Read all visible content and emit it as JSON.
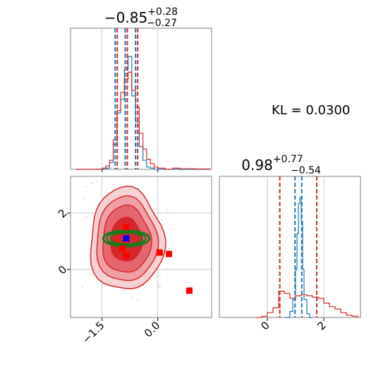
{
  "kl_text": "KL = 0.0300",
  "colors": {
    "blue": "#1f77b4",
    "red": "#d62728",
    "green": "#1a7a1a",
    "marker_red": "#ff0000",
    "marker_blue": "#0000ff",
    "grid": "#c8c8c8",
    "frame": "#808080"
  },
  "chart_data": [
    {
      "type": "line",
      "panel": "marginal-x",
      "title": "$-0.85^{+0.28}_{-0.27}$",
      "title_parts": {
        "main": "−0.85",
        "sup": "+0.28",
        "sub": "−0.27"
      },
      "xlim": [
        -2.35,
        1.45
      ],
      "grid_x": [
        -1.5,
        0.0
      ],
      "quantile_lines": [
        -1.12,
        -0.85,
        -0.57
      ],
      "series": [
        {
          "color": "blue",
          "x": [
            -2.2,
            -2.1,
            -2.0,
            -1.9,
            -1.8,
            -1.7,
            -1.6,
            -1.5,
            -1.4,
            -1.3,
            -1.2,
            -1.1,
            -1.0,
            -0.9,
            -0.8,
            -0.7,
            -0.6,
            -0.5,
            -0.4,
            -0.3,
            -0.2,
            -0.1,
            0.0,
            0.1,
            0.2,
            0.3,
            0.4,
            0.6,
            1.0,
            1.4
          ],
          "y": [
            0,
            0,
            0,
            0,
            0,
            0,
            0,
            0,
            0.01,
            0.06,
            0.22,
            0.5,
            0.62,
            0.88,
            1.0,
            0.65,
            0.42,
            0.2,
            0.08,
            0.02,
            0.01,
            0,
            0,
            0,
            0,
            0,
            0,
            0,
            0,
            0
          ]
        },
        {
          "color": "red",
          "x": [
            -2.2,
            -2.1,
            -2.0,
            -1.9,
            -1.8,
            -1.7,
            -1.6,
            -1.5,
            -1.4,
            -1.3,
            -1.2,
            -1.1,
            -1.0,
            -0.9,
            -0.8,
            -0.7,
            -0.6,
            -0.5,
            -0.4,
            -0.3,
            -0.2,
            -0.1,
            0.0,
            0.1,
            0.2,
            0.3,
            0.4,
            0.6,
            1.0,
            1.4
          ],
          "y": [
            0,
            0,
            0,
            0,
            0,
            0,
            0,
            0.01,
            0.03,
            0.08,
            0.26,
            0.52,
            0.68,
            0.8,
            0.86,
            0.7,
            0.55,
            0.32,
            0.18,
            0.09,
            0.05,
            0.02,
            0.01,
            0.01,
            0,
            0,
            0.01,
            0.005,
            0.003,
            0
          ]
        }
      ]
    },
    {
      "type": "scatter",
      "panel": "joint",
      "xlim": [
        -2.35,
        1.45
      ],
      "ylim": [
        -1.7,
        3.3
      ],
      "grid_x": [
        -1.5,
        0.0
      ],
      "grid_y": [
        0,
        2
      ],
      "xticks": [
        "−1.5",
        "0.0"
      ],
      "yticks": [
        "0",
        "2"
      ],
      "xtick_values": [
        -1.5,
        0.0
      ],
      "ytick_values": [
        0,
        2
      ],
      "points_red": [
        [
          -0.85,
          1.5
        ],
        [
          -0.95,
          0.75
        ],
        [
          -0.85,
          0.5
        ],
        [
          0.05,
          0.6
        ],
        [
          0.3,
          0.55
        ],
        [
          0.85,
          -0.75
        ]
      ],
      "point_blue": [
        -0.85,
        1.1
      ],
      "ellipse_green": {
        "cx": -0.85,
        "cy": 1.1,
        "rx": 0.62,
        "ry": 0.28
      }
    },
    {
      "type": "line",
      "panel": "marginal-y",
      "title": "$0.98^{+0.77}_{-0.54}$",
      "title_parts": {
        "main": "0.98",
        "sup": "+0.77",
        "sub": "−0.54"
      },
      "xlim": [
        -1.7,
        3.3
      ],
      "grid_x": [
        0,
        2
      ],
      "xticks": [
        "0",
        "2"
      ],
      "xtick_values": [
        0,
        2
      ],
      "quantile_lines_red": [
        0.44,
        1.75
      ],
      "quantile_lines_blue": [
        0.98,
        1.22
      ],
      "series": [
        {
          "color": "blue",
          "x": [
            0.6,
            0.7,
            0.8,
            0.9,
            1.0,
            1.05,
            1.1,
            1.15,
            1.2,
            1.25,
            1.3,
            1.4,
            1.5,
            1.6
          ],
          "y": [
            0,
            0,
            0.05,
            0.15,
            0.4,
            0.7,
            0.95,
            1.0,
            0.8,
            0.4,
            0.15,
            0.03,
            0,
            0
          ]
        },
        {
          "color": "red",
          "x": [
            -0.4,
            -0.2,
            0.0,
            0.2,
            0.4,
            0.6,
            0.8,
            1.0,
            1.2,
            1.4,
            1.6,
            1.8,
            2.0,
            2.2,
            2.4,
            2.6,
            2.8,
            3.0,
            3.2
          ],
          "y": [
            0,
            0.01,
            0.04,
            0.08,
            0.22,
            0.2,
            0.16,
            0.18,
            0.19,
            0.18,
            0.17,
            0.16,
            0.12,
            0.09,
            0.07,
            0.04,
            0.02,
            0.01,
            0
          ]
        }
      ]
    }
  ]
}
